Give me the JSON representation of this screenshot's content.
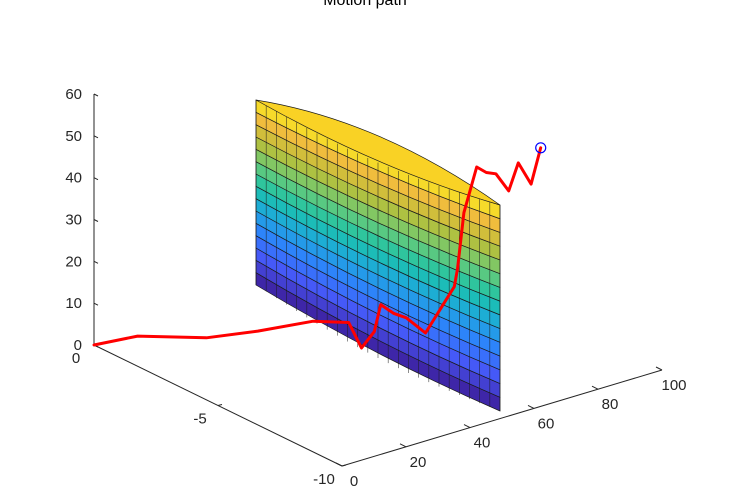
{
  "chart_data": {
    "type": "surface+line3d",
    "title": "Motion path",
    "xlabel": "",
    "ylabel": "",
    "zlabel": "",
    "axes": {
      "x": {
        "lim": [
          0,
          100
        ],
        "ticks": [
          0,
          20,
          40,
          60,
          80,
          100
        ],
        "tick_labels": [
          "0",
          "20",
          "40",
          "60",
          "80",
          "100"
        ]
      },
      "y": {
        "lim": [
          -10,
          0
        ],
        "ticks": [
          0,
          -5,
          -10
        ],
        "tick_labels": [
          "0",
          "-5",
          "-10"
        ]
      },
      "z": {
        "lim": [
          0,
          60
        ],
        "ticks": [
          0,
          10,
          20,
          30,
          40,
          50,
          60
        ],
        "tick_labels": [
          "0",
          "10",
          "20",
          "30",
          "40",
          "50",
          "60"
        ]
      }
    },
    "grid": false,
    "series": [
      {
        "type": "line3d",
        "color": "#ff0000",
        "points": [
          [
            0,
            0,
            0
          ],
          [
            2,
            -1.5,
            6
          ],
          [
            8,
            -3.5,
            10
          ],
          [
            14,
            -4.8,
            14
          ],
          [
            22,
            -6.0,
            18
          ],
          [
            30,
            -6.4,
            17
          ],
          [
            34,
            -6.4,
            10
          ],
          [
            38,
            -6.4,
            13
          ],
          [
            40,
            -6.4,
            19
          ],
          [
            44,
            -6.4,
            16
          ],
          [
            48,
            -6.4,
            14
          ],
          [
            54,
            -6.4,
            9
          ],
          [
            60,
            -6.4,
            15
          ],
          [
            63,
            -6.4,
            18
          ],
          [
            64,
            -6.4,
            22
          ],
          [
            66,
            -6.4,
            35
          ],
          [
            70,
            -6.4,
            45
          ],
          [
            73,
            -6.4,
            43
          ],
          [
            76,
            -6.4,
            42
          ],
          [
            80,
            -6.4,
            37
          ],
          [
            83,
            -6.4,
            43
          ],
          [
            87,
            -6.4,
            37
          ],
          [
            90,
            -6.4,
            45
          ]
        ]
      },
      {
        "type": "marker",
        "marker": "circle",
        "color": "#0000ff",
        "point": [
          90,
          -6.4,
          45
        ]
      }
    ],
    "surface": {
      "type": "cylinder-segment",
      "colormap": "parula",
      "z_range": [
        0,
        60
      ],
      "levels": 15,
      "description_from_image": "curved wall surface with colored bands from blue at bottom to yellow at top"
    }
  }
}
